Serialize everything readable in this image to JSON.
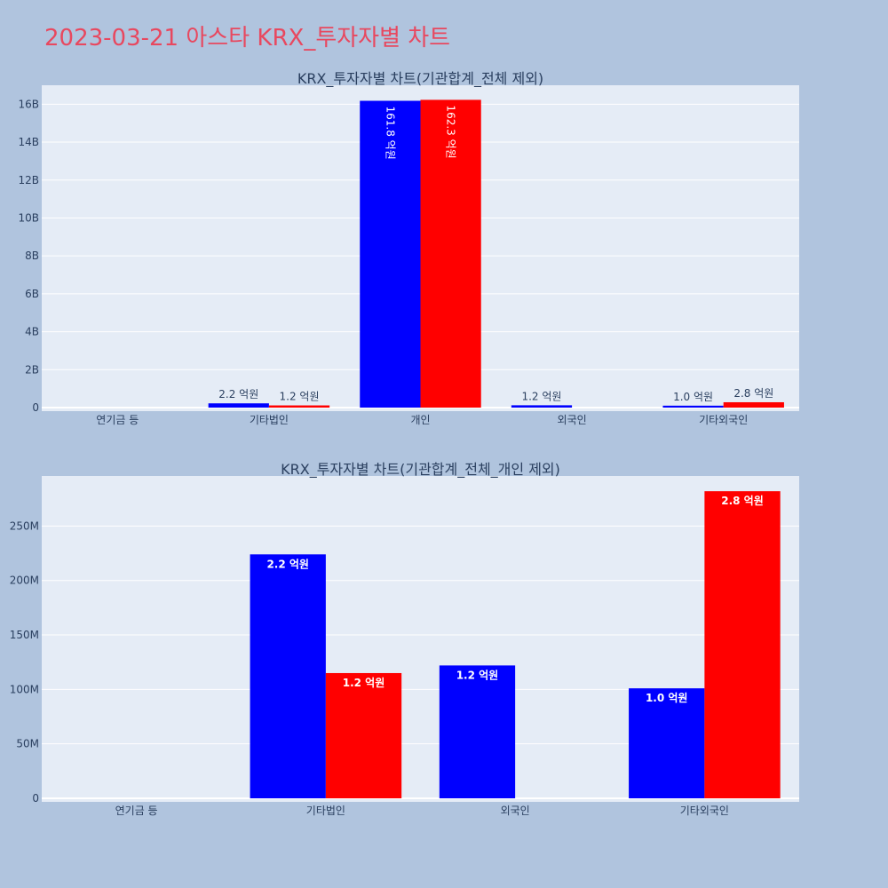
{
  "page": {
    "title": "2023-03-21 아스타 KRX_투자자별 차트"
  },
  "colors": {
    "background": "#b0c4de",
    "plot_bg": "#e5ecf6",
    "title": "#e8485f",
    "buy": "#0000ff",
    "sell": "#ff0000",
    "text": "#2a3f5f"
  },
  "chart_data": [
    {
      "type": "bar",
      "title": "KRX_투자자별 차트(기관합계_전체 제외)",
      "categories": [
        "연기금 등",
        "기타법인",
        "개인",
        "외국인",
        "기타외국인"
      ],
      "series": [
        {
          "color": "#0000ff",
          "values": [
            0,
            224000000,
            16180000000,
            122000000,
            101000000
          ],
          "labels": [
            "",
            "2.2 억원",
            "161.8 억원",
            "1.2 억원",
            "1.0 억원"
          ]
        },
        {
          "color": "#ff0000",
          "values": [
            0,
            115000000,
            16230000000,
            0,
            282000000
          ],
          "labels": [
            "",
            "1.2 억원",
            "162.3 억원",
            "",
            "2.8 억원"
          ]
        }
      ],
      "yticks": [
        0,
        2000000000,
        4000000000,
        6000000000,
        8000000000,
        10000000000,
        12000000000,
        14000000000,
        16000000000
      ],
      "ytick_labels": [
        "0",
        "2B",
        "4B",
        "6B",
        "8B",
        "10B",
        "12B",
        "14B",
        "16B"
      ],
      "ylim": [
        0,
        17000000000
      ],
      "grid": true,
      "legend": "none"
    },
    {
      "type": "bar",
      "title": "KRX_투자자별 차트(기관합계_전체_개인 제외)",
      "categories": [
        "연기금 등",
        "기타법인",
        "외국인",
        "기타외국인"
      ],
      "series": [
        {
          "color": "#0000ff",
          "values": [
            0,
            224000000,
            122000000,
            101000000
          ],
          "labels": [
            "",
            "2.2 억원",
            "1.2 억원",
            "1.0 억원"
          ]
        },
        {
          "color": "#ff0000",
          "values": [
            0,
            115000000,
            0,
            282000000
          ],
          "labels": [
            "",
            "1.2 억원",
            "",
            "2.8 억원"
          ]
        }
      ],
      "yticks": [
        0,
        50000000,
        100000000,
        150000000,
        200000000,
        250000000
      ],
      "ytick_labels": [
        "0",
        "50M",
        "100M",
        "150M",
        "200M",
        "250M"
      ],
      "ylim": [
        0,
        296000000
      ],
      "grid": true,
      "legend": "none"
    }
  ]
}
